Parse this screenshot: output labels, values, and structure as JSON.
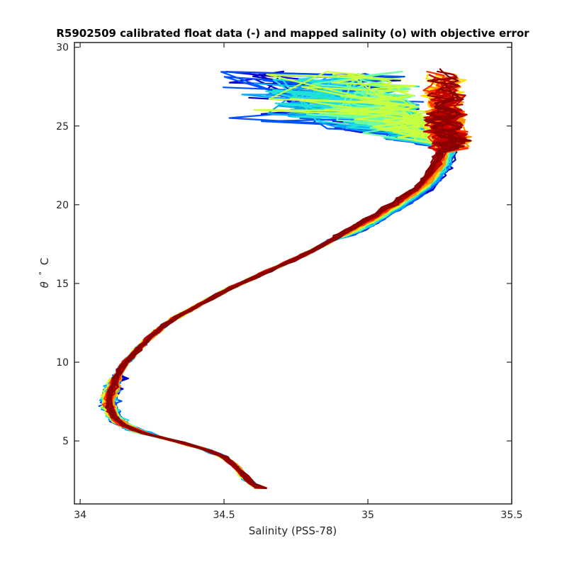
{
  "chart_data": {
    "type": "line",
    "title": "R5902509 calibrated float data (-) and mapped salinity (o) with objective error",
    "xlabel": "Salinity (PSS-78)",
    "ylabel_symbol": "θ",
    "ylabel_degree": "°",
    "ylabel_unit": "C",
    "xlim": [
      33.98,
      35.5
    ],
    "ylim": [
      1,
      30.3
    ],
    "x_ticks": [
      34,
      34.5,
      35,
      35.5
    ],
    "x_tick_labels": [
      "34",
      "34.5",
      "35",
      "35.5"
    ],
    "y_ticks": [
      5,
      10,
      15,
      20,
      25,
      30
    ],
    "y_tick_labels": [
      "5",
      "10",
      "15",
      "20",
      "25",
      "30"
    ],
    "grid": false,
    "legend": "none",
    "colormap": "jet (profile cycle order, early = blue, late = dark red)",
    "colors": [
      "#0000c8",
      "#0050ff",
      "#00a8ff",
      "#20e0d8",
      "#70ffa0",
      "#c8ff40",
      "#ffe000",
      "#ff9000",
      "#ff3000",
      "#c00000",
      "#8b0000"
    ],
    "series_envelope": {
      "core_theta": [
        2.0,
        2.5,
        3.0,
        3.5,
        4.0,
        4.5,
        5.0,
        5.5,
        6.0,
        6.5,
        7.0,
        7.5,
        8.0,
        8.5,
        9.0,
        9.5,
        10.0,
        10.5,
        11.0,
        11.5,
        12.0,
        12.5,
        13.0,
        13.5,
        14.0,
        14.5,
        15.0,
        15.5,
        16.0,
        16.5,
        17.0,
        17.5,
        18.0,
        18.5,
        19.0,
        19.5,
        20.0,
        20.5,
        21.0,
        21.5,
        22.0,
        22.5,
        23.0,
        23.5,
        24.0,
        24.5,
        25.0
      ],
      "core_salinity": [
        34.615,
        34.585,
        34.56,
        34.535,
        34.5,
        34.43,
        34.33,
        34.22,
        34.15,
        34.12,
        34.105,
        34.1,
        34.105,
        34.115,
        34.125,
        34.14,
        34.16,
        34.185,
        34.21,
        34.24,
        34.27,
        34.305,
        34.35,
        34.4,
        34.45,
        34.5,
        34.56,
        34.62,
        34.68,
        34.74,
        34.8,
        34.85,
        34.9,
        34.95,
        35.0,
        35.045,
        35.09,
        35.13,
        35.17,
        35.2,
        35.22,
        35.24,
        35.25,
        35.26,
        35.265,
        35.26,
        35.25
      ]
    }
  }
}
